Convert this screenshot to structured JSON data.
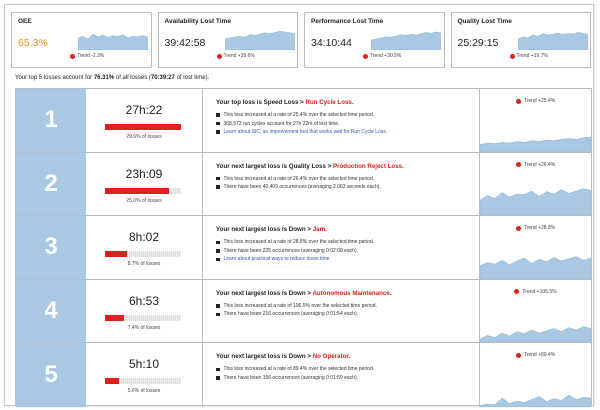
{
  "kpis": [
    {
      "title": "OEE",
      "value": "65.3%",
      "trend": "Trend  -2.3%",
      "spark": [
        0.55,
        0.62,
        0.5,
        0.72,
        0.6,
        0.68,
        0.58,
        0.65,
        0.62,
        0.7,
        0.55,
        0.62,
        0.6,
        0.66,
        0.58
      ]
    },
    {
      "title": "Availability Lost Time",
      "value": "39:42:58",
      "trend": "Trend  +35.6%",
      "spark": [
        0.5,
        0.55,
        0.6,
        0.62,
        0.58,
        0.7,
        0.66,
        0.72,
        0.78,
        0.74,
        0.8,
        0.85,
        0.82,
        0.78,
        0.75
      ]
    },
    {
      "title": "Performance Lost Time",
      "value": "34:10:44",
      "trend": "Trend  +30.5%",
      "spark": [
        0.45,
        0.5,
        0.55,
        0.6,
        0.58,
        0.64,
        0.7,
        0.66,
        0.72,
        0.68,
        0.74,
        0.8,
        0.76,
        0.82,
        0.78
      ]
    },
    {
      "title": "Quality Lost Time",
      "value": "25:29:15",
      "trend": "Trend  +19.7%",
      "spark": [
        0.5,
        0.6,
        0.55,
        0.7,
        0.62,
        0.75,
        0.68,
        0.72,
        0.78,
        0.7,
        0.75,
        0.72,
        0.8,
        0.76,
        0.7
      ]
    }
  ],
  "summary": {
    "prefix": "Your top 5 losses account for ",
    "percent": "76.31%",
    "middle": " of all losses (",
    "time": "70:39:27",
    "suffix": " of lost time)."
  },
  "losses": [
    {
      "rank": "1",
      "time": "27h:22",
      "percent_label": "29.6% of losses",
      "fill": 1.0,
      "head_prefix": "Your top loss is Speed Loss > ",
      "head_red": "Run Cycle Loss.",
      "bullets": [
        "This loss increased at a rate of 25.4% over the selected time period.",
        "368,573 run cycles account for 27h 22m of lost time."
      ],
      "link": "Learn about SIC, an improvement tool that works well for Run Cycle Loss.",
      "trend": "Trend  +25.4%",
      "spark": [
        0.25,
        0.3,
        0.28,
        0.32,
        0.3,
        0.35,
        0.32,
        0.38,
        0.35,
        0.4,
        0.38,
        0.42,
        0.45,
        0.42,
        0.48,
        0.5
      ]
    },
    {
      "rank": "2",
      "time": "23h:09",
      "percent_label": "25.0% of losses",
      "fill": 0.84,
      "head_prefix": "Your next largest loss is Quality Loss > ",
      "head_red": "Production Reject Loss.",
      "bullets": [
        "This loss increased at a rate of 26.4% over the selected time period.",
        "There have been 40,409 occurrences (averaging 2.063 seconds each)."
      ],
      "link": "",
      "trend": "Trend  +26.4%",
      "spark": [
        0.5,
        0.65,
        0.55,
        0.75,
        0.6,
        0.7,
        0.68,
        0.8,
        0.62,
        0.78,
        0.7,
        0.85,
        0.72,
        0.8,
        0.88,
        0.82
      ]
    },
    {
      "rank": "3",
      "time": "8h:02",
      "percent_label": "8.7% of losses",
      "fill": 0.29,
      "head_prefix": "Your next largest loss is Down > ",
      "head_red": "Jam.",
      "bullets": [
        "This loss increased at a rate of 28.8% over the selected time period.",
        "There have been 225 occurrences (averaging 0:02:08 each)."
      ],
      "link": "Learn about practical ways to reduce down time",
      "trend": "Trend  +28.8%",
      "spark": [
        0.45,
        0.55,
        0.5,
        0.62,
        0.48,
        0.6,
        0.7,
        0.52,
        0.66,
        0.58,
        0.72,
        0.6,
        0.68,
        0.75,
        0.62,
        0.7
      ]
    },
    {
      "rank": "4",
      "time": "6h:53",
      "percent_label": "7.4% of losses",
      "fill": 0.25,
      "head_prefix": "Your next largest loss is Down > ",
      "head_red": "Autonomous Maintenance.",
      "bullets": [
        "This loss increased at a rate of 106.5% over the selected time period.",
        "There have been 216 occurrences (averaging 0:01:54 each)."
      ],
      "link": "",
      "trend": "Trend  +106.5%",
      "spark": [
        0.1,
        0.22,
        0.15,
        0.3,
        0.2,
        0.35,
        0.28,
        0.4,
        0.3,
        0.38,
        0.45,
        0.35,
        0.48,
        0.4,
        0.52,
        0.45
      ]
    },
    {
      "rank": "5",
      "time": "5h:10",
      "percent_label": "5.6% of losses",
      "fill": 0.19,
      "head_prefix": "Your next largest loss is Down > ",
      "head_red": "No Operator.",
      "bullets": [
        "This loss increased at a rate of 89.4% over the selected time period.",
        "There have been 156 occurrences (averaging 0:01:59 each)."
      ],
      "link": "",
      "trend": "Trend  +89.4%",
      "spark": [
        0.05,
        0.1,
        0.08,
        0.3,
        0.12,
        0.2,
        0.15,
        0.25,
        0.35,
        0.18,
        0.28,
        0.22,
        0.4,
        0.25,
        0.32,
        0.3
      ]
    }
  ],
  "colors": {
    "accent_orange": "#e8901c",
    "trend_red": "#e02020",
    "spark_blue": "#a8c8e4",
    "rank_blue": "#a8c8e4",
    "link_blue": "#3355aa"
  }
}
